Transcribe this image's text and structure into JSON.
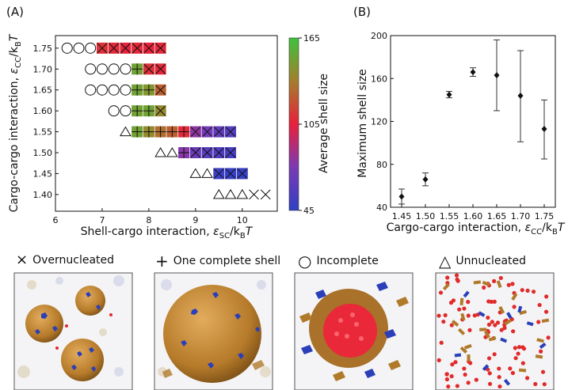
{
  "panel_labels": {
    "a": "(A)",
    "b": "(B)"
  },
  "chart_data": [
    {
      "type": "scatter",
      "panel": "(A)",
      "xlabel": "Shell-cargo interaction, ε_SC / k_B T",
      "xlabel_parts": {
        "main": "Shell-cargo interaction, ",
        "sym": "ε",
        "sub": "SC",
        "rest": "/k",
        "sub2": "B",
        "tail": "T"
      },
      "ylabel": "Cargo-cargo interaction, ε_CC / k_B T",
      "ylabel_parts": {
        "main": "Cargo-cargo interaction, ",
        "sym": "ε",
        "sub": "CC",
        "rest": "/k",
        "sub2": "B",
        "tail": "T"
      },
      "xlim": [
        6,
        10.75
      ],
      "ylim": [
        1.36,
        1.78
      ],
      "x_ticks": [
        "6",
        "7",
        "8",
        "9",
        "10"
      ],
      "x_tick_values": [
        6,
        7,
        8,
        9,
        10
      ],
      "y_ticks": [
        "1.40",
        "1.45",
        "1.50",
        "1.55",
        "1.60",
        "1.65",
        "1.70",
        "1.75"
      ],
      "y_tick_values": [
        1.4,
        1.45,
        1.5,
        1.55,
        1.6,
        1.65,
        1.7,
        1.75
      ],
      "marker_legend": {
        "x": "Overnucleated",
        "plus": "One complete shell",
        "circle": "Incomplete",
        "triangle": "Unnucleated"
      },
      "colorbar": {
        "label": "Average shell size",
        "min": 45,
        "mid": 105,
        "max": 165,
        "ticks": [
          "165",
          "105",
          "45"
        ],
        "colors": [
          "#3040c0",
          "#7a3cb0",
          "#e02040",
          "#a8802a",
          "#3ec040"
        ]
      },
      "points": [
        {
          "eps_cc": 1.75,
          "eps_sc": 6.25,
          "m": "circle"
        },
        {
          "eps_cc": 1.75,
          "eps_sc": 6.5,
          "m": "circle"
        },
        {
          "eps_cc": 1.75,
          "eps_sc": 6.75,
          "m": "circle"
        },
        {
          "eps_cc": 1.75,
          "eps_sc": 7.0,
          "m": "x",
          "size": 110
        },
        {
          "eps_cc": 1.75,
          "eps_sc": 7.25,
          "m": "x",
          "size": 108
        },
        {
          "eps_cc": 1.75,
          "eps_sc": 7.5,
          "m": "x",
          "size": 106
        },
        {
          "eps_cc": 1.75,
          "eps_sc": 7.75,
          "m": "x",
          "size": 108
        },
        {
          "eps_cc": 1.75,
          "eps_sc": 8.0,
          "m": "x",
          "size": 106
        },
        {
          "eps_cc": 1.75,
          "eps_sc": 8.25,
          "m": "x",
          "size": 108
        },
        {
          "eps_cc": 1.7,
          "eps_sc": 6.75,
          "m": "circle"
        },
        {
          "eps_cc": 1.7,
          "eps_sc": 7.0,
          "m": "circle"
        },
        {
          "eps_cc": 1.7,
          "eps_sc": 7.25,
          "m": "circle"
        },
        {
          "eps_cc": 1.7,
          "eps_sc": 7.5,
          "m": "circle"
        },
        {
          "eps_cc": 1.7,
          "eps_sc": 7.75,
          "m": "plus",
          "size": 150
        },
        {
          "eps_cc": 1.7,
          "eps_sc": 8.0,
          "m": "x",
          "size": 110
        },
        {
          "eps_cc": 1.7,
          "eps_sc": 8.25,
          "m": "x",
          "size": 108
        },
        {
          "eps_cc": 1.65,
          "eps_sc": 6.75,
          "m": "circle"
        },
        {
          "eps_cc": 1.65,
          "eps_sc": 7.0,
          "m": "circle"
        },
        {
          "eps_cc": 1.65,
          "eps_sc": 7.25,
          "m": "circle"
        },
        {
          "eps_cc": 1.65,
          "eps_sc": 7.5,
          "m": "circle"
        },
        {
          "eps_cc": 1.65,
          "eps_sc": 7.75,
          "m": "plus",
          "size": 150
        },
        {
          "eps_cc": 1.65,
          "eps_sc": 8.0,
          "m": "plus",
          "size": 145
        },
        {
          "eps_cc": 1.65,
          "eps_sc": 8.25,
          "m": "x",
          "size": 125
        },
        {
          "eps_cc": 1.6,
          "eps_sc": 7.25,
          "m": "circle"
        },
        {
          "eps_cc": 1.6,
          "eps_sc": 7.5,
          "m": "circle"
        },
        {
          "eps_cc": 1.6,
          "eps_sc": 7.75,
          "m": "plus",
          "size": 150
        },
        {
          "eps_cc": 1.6,
          "eps_sc": 8.0,
          "m": "plus",
          "size": 150
        },
        {
          "eps_cc": 1.6,
          "eps_sc": 8.25,
          "m": "x",
          "size": 140
        },
        {
          "eps_cc": 1.55,
          "eps_sc": 7.5,
          "m": "triangle"
        },
        {
          "eps_cc": 1.55,
          "eps_sc": 7.75,
          "m": "plus",
          "size": 150
        },
        {
          "eps_cc": 1.55,
          "eps_sc": 8.0,
          "m": "plus",
          "size": 140
        },
        {
          "eps_cc": 1.55,
          "eps_sc": 8.25,
          "m": "plus",
          "size": 130
        },
        {
          "eps_cc": 1.55,
          "eps_sc": 8.5,
          "m": "plus",
          "size": 125
        },
        {
          "eps_cc": 1.55,
          "eps_sc": 8.75,
          "m": "plus",
          "size": 108
        },
        {
          "eps_cc": 1.55,
          "eps_sc": 9.0,
          "m": "x",
          "size": 80
        },
        {
          "eps_cc": 1.55,
          "eps_sc": 9.25,
          "m": "x",
          "size": 72
        },
        {
          "eps_cc": 1.55,
          "eps_sc": 9.5,
          "m": "x",
          "size": 65
        },
        {
          "eps_cc": 1.55,
          "eps_sc": 9.75,
          "m": "x",
          "size": 60
        },
        {
          "eps_cc": 1.5,
          "eps_sc": 8.25,
          "m": "triangle"
        },
        {
          "eps_cc": 1.5,
          "eps_sc": 8.5,
          "m": "triangle"
        },
        {
          "eps_cc": 1.5,
          "eps_sc": 8.75,
          "m": "plus",
          "size": 78
        },
        {
          "eps_cc": 1.5,
          "eps_sc": 9.0,
          "m": "x",
          "size": 68
        },
        {
          "eps_cc": 1.5,
          "eps_sc": 9.25,
          "m": "x",
          "size": 62
        },
        {
          "eps_cc": 1.5,
          "eps_sc": 9.5,
          "m": "x",
          "size": 58
        },
        {
          "eps_cc": 1.5,
          "eps_sc": 9.75,
          "m": "x",
          "size": 55
        },
        {
          "eps_cc": 1.45,
          "eps_sc": 9.0,
          "m": "triangle"
        },
        {
          "eps_cc": 1.45,
          "eps_sc": 9.25,
          "m": "triangle"
        },
        {
          "eps_cc": 1.45,
          "eps_sc": 9.5,
          "m": "x",
          "size": 50
        },
        {
          "eps_cc": 1.45,
          "eps_sc": 9.75,
          "m": "x",
          "size": 48
        },
        {
          "eps_cc": 1.45,
          "eps_sc": 10.0,
          "m": "x",
          "size": 48
        },
        {
          "eps_cc": 1.4,
          "eps_sc": 9.5,
          "m": "triangle"
        },
        {
          "eps_cc": 1.4,
          "eps_sc": 9.75,
          "m": "triangle"
        },
        {
          "eps_cc": 1.4,
          "eps_sc": 10.0,
          "m": "triangle"
        },
        {
          "eps_cc": 1.4,
          "eps_sc": 10.25,
          "m": "x"
        },
        {
          "eps_cc": 1.4,
          "eps_sc": 10.5,
          "m": "x"
        }
      ]
    },
    {
      "type": "scatter",
      "panel": "(B)",
      "xlabel": "Cargo-cargo interaction, ε_CC / k_B T",
      "xlabel_parts": {
        "main": "Cargo-cargo interaction, ",
        "sym": "ε",
        "sub": "CC",
        "rest": "/k",
        "sub2": "B",
        "tail": "T"
      },
      "ylabel": "Maximum shell size",
      "x_ticks": [
        "1.45",
        "1.50",
        "1.55",
        "1.60",
        "1.65",
        "1.70",
        "1.75"
      ],
      "y_ticks": [
        "40",
        "80",
        "120",
        "160",
        "200"
      ],
      "y_tick_values": [
        40,
        80,
        120,
        160,
        200
      ],
      "ylim": [
        40,
        200
      ],
      "x": [
        1.45,
        1.5,
        1.55,
        1.6,
        1.65,
        1.7,
        1.75
      ],
      "y": [
        50,
        66,
        145,
        166,
        163,
        144,
        113
      ],
      "err_low": [
        43,
        60,
        142,
        162,
        130,
        101,
        85
      ],
      "err_high": [
        57,
        72,
        148,
        170,
        196,
        186,
        140
      ]
    }
  ],
  "snapshots": [
    {
      "symbol": "×",
      "label": "Overnucleated"
    },
    {
      "symbol": "+",
      "label": "One complete shell"
    },
    {
      "symbol": "○",
      "label": "Incomplete"
    },
    {
      "symbol": "△",
      "label": "Unnucleated"
    }
  ]
}
